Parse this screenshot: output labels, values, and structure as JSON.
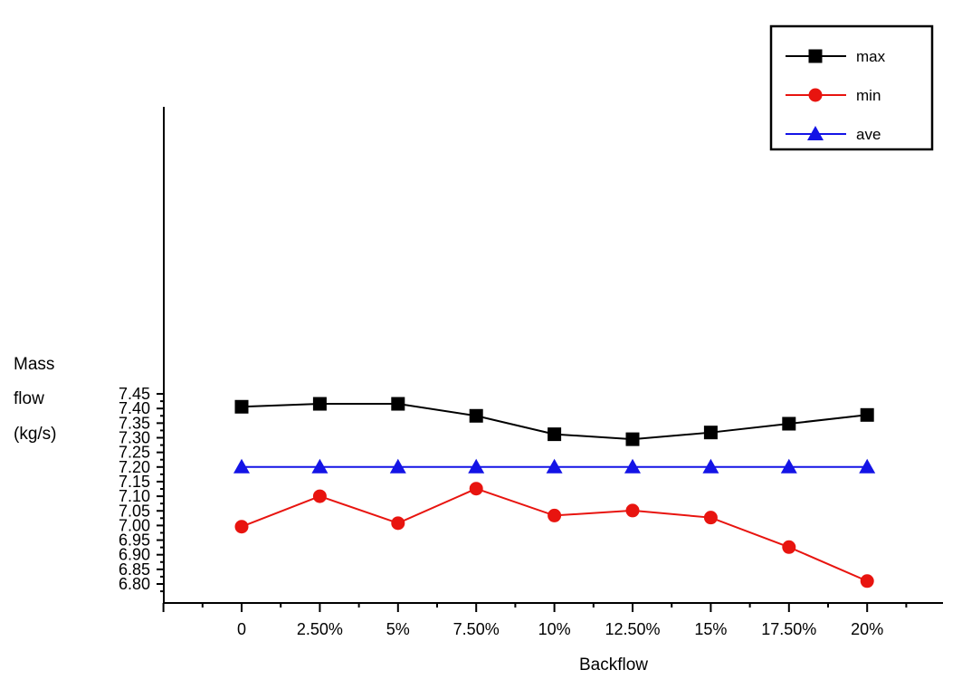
{
  "chart_data": {
    "type": "line",
    "title": "",
    "xlabel": "Backflow",
    "ylabel_lines": [
      "Mass",
      "flow",
      "(kg/s)"
    ],
    "categories": [
      "0",
      "2.50%",
      "5%",
      "7.50%",
      "10%",
      "12.50%",
      "15%",
      "17.50%",
      "20%"
    ],
    "y_ticks": [
      "6.80",
      "6.85",
      "6.90",
      "6.95",
      "7.00",
      "7.05",
      "7.10",
      "7.15",
      "7.20",
      "7.25",
      "7.30",
      "7.35",
      "7.40",
      "7.45"
    ],
    "ylim": [
      6.785,
      7.45
    ],
    "grid": false,
    "legend_position": "top-right",
    "series": [
      {
        "name": "max",
        "marker": "square",
        "color": "#000000",
        "values": [
          7.406,
          7.416,
          7.416,
          7.375,
          7.312,
          7.295,
          7.318,
          7.348,
          7.378
        ]
      },
      {
        "name": "min",
        "marker": "circle",
        "color": "#e8140f",
        "values": [
          6.996,
          7.1,
          7.008,
          7.126,
          7.034,
          7.051,
          7.027,
          6.926,
          6.81
        ]
      },
      {
        "name": "ave",
        "marker": "triangle",
        "color": "#1414e6",
        "values": [
          7.2,
          7.2,
          7.2,
          7.2,
          7.2,
          7.2,
          7.2,
          7.2,
          7.2
        ]
      }
    ]
  }
}
